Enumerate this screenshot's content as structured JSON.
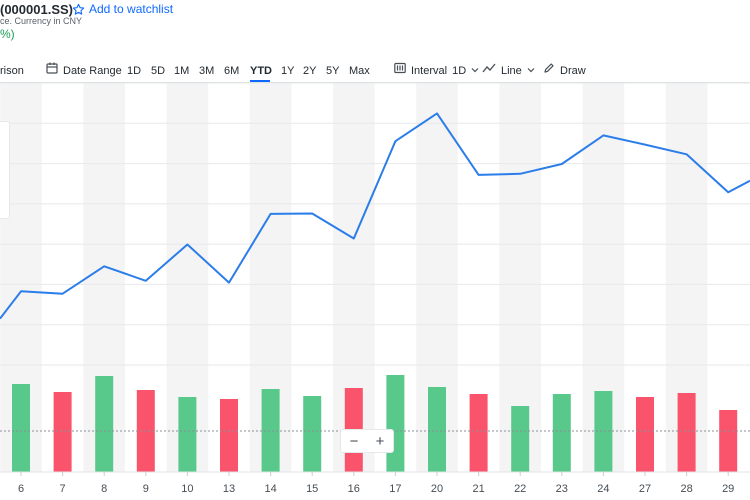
{
  "header": {
    "symbol_title": "(000001.SS)",
    "watchlist_label": "Add to watchlist",
    "subtitle": "ce. Currency in CNY",
    "change_text": "%)",
    "change_color": "#1a9e55"
  },
  "toolbar": {
    "comparison_label": "rison",
    "date_range_label": "Date Range",
    "ranges": [
      "1D",
      "5D",
      "1M",
      "3M",
      "6M",
      "YTD",
      "1Y",
      "2Y",
      "5Y",
      "Max"
    ],
    "active_range": "YTD",
    "interval_label": "Interval",
    "interval_value": "1D",
    "chart_type_label": "Line",
    "draw_label": "Draw"
  },
  "zoom": {
    "minus": "−",
    "plus": "+"
  },
  "colors": {
    "line": "#2b7de9",
    "up_bar": "#58c98a",
    "down_bar": "#f9546b",
    "accent": "#0f69ff",
    "column_stripe": "#f4f4f5"
  },
  "chart_data": {
    "type": "line",
    "x": [
      "6",
      "7",
      "8",
      "9",
      "10",
      "13",
      "14",
      "15",
      "16",
      "17",
      "20",
      "21",
      "22",
      "23",
      "24",
      "27",
      "28",
      "29"
    ],
    "series": [
      {
        "values": [
          3.32,
          3.08,
          5.8,
          4.36,
          7.96,
          4.18,
          11.0,
          11.04,
          8.56,
          18.22,
          20.98,
          14.88,
          14.98,
          15.96,
          18.8,
          17.88,
          16.92,
          13.16
        ]
      }
    ],
    "volume": {
      "values": [
        88,
        80,
        96,
        82,
        75,
        73,
        83,
        76,
        84,
        97,
        85,
        78,
        66,
        78,
        81,
        75,
        79,
        62
      ],
      "direction": [
        "up",
        "down",
        "up",
        "down",
        "up",
        "down",
        "up",
        "up",
        "down",
        "up",
        "up",
        "down",
        "up",
        "up",
        "up",
        "down",
        "down",
        "down"
      ]
    },
    "line_start_left_edge": 0.6,
    "line_end_right_edge": 14.3,
    "ylim": [
      -4,
      24
    ],
    "volume_max": 100,
    "grid": true,
    "xlabel": "",
    "ylabel": ""
  }
}
